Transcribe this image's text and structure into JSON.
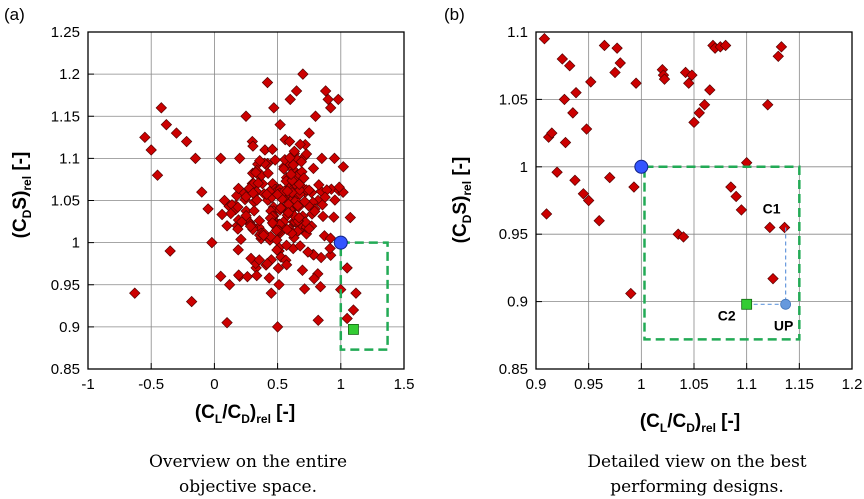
{
  "colors": {
    "marker": "#cc0000",
    "marker_edge": "#550000",
    "reference": "#3355ff",
    "c2": "#33cc33",
    "up": "#6699dd",
    "box": "#22aa55",
    "grid": "#888888"
  },
  "chart_data": [
    {
      "type": "scatter",
      "panel_label": "(a)",
      "caption": [
        "Overview on the entire",
        "objective space."
      ],
      "xlabel": {
        "main": "(C",
        "s1": "L",
        "mid": "/C",
        "s2": "D",
        "close": ")",
        "s3": "rel",
        "unit": " [-]"
      },
      "ylabel": {
        "main": "(C",
        "s1": "D",
        "mid": "S)",
        "s2": "rel",
        "unit": " [-]"
      },
      "xlim": [
        -1,
        1.5
      ],
      "ylim": [
        0.85,
        1.25
      ],
      "xticks": [
        "-1",
        "-0.5",
        "0",
        "0.5",
        "1",
        "1.5"
      ],
      "xtick_values": [
        -1,
        -0.5,
        0,
        0.5,
        1,
        1.5
      ],
      "yticks": [
        "0.85",
        "0.9",
        "0.95",
        "1",
        "1.05",
        "1.1",
        "1.15",
        "1.2",
        "1.25"
      ],
      "ytick_values": [
        0.85,
        0.9,
        0.95,
        1,
        1.05,
        1.1,
        1.15,
        1.2,
        1.25
      ],
      "grid": true,
      "reference_point": [
        1.0,
        1.0
      ],
      "c2_point": [
        1.1,
        0.897
      ],
      "box": {
        "x": [
          1.0,
          1.37
        ],
        "y": [
          0.873,
          1.0
        ]
      },
      "seed": 7,
      "series": [
        {
          "name": "designs",
          "x": [
            -0.63,
            -0.55,
            -0.5,
            -0.45,
            -0.42,
            -0.38,
            -0.35,
            -0.3,
            -0.22,
            -0.18,
            -0.15,
            -0.1,
            -0.05,
            -0.02,
            0.05,
            0.08,
            0.1,
            0.12,
            0.15,
            0.18,
            0.2,
            0.25,
            0.3,
            0.33,
            0.38,
            0.42,
            0.45,
            0.47,
            0.5,
            0.55,
            0.6,
            0.65,
            0.7,
            0.75,
            0.8,
            0.85,
            0.88,
            0.9,
            0.92,
            0.95,
            0.98,
            1.02,
            1.05,
            1.1,
            1.12,
            0.2,
            0.05,
            0.1,
            0.3,
            0.35,
            0.4,
            0.52,
            0.62,
            0.72,
            0.82,
            0.92,
            1.05
          ],
          "y": [
            0.94,
            1.125,
            1.11,
            1.08,
            1.16,
            1.14,
            0.99,
            1.13,
            1.12,
            0.93,
            1.1,
            1.06,
            1.04,
            1.0,
            0.96,
            1.05,
            0.905,
            0.95,
            1.04,
            1.02,
            0.96,
            1.15,
            1.07,
            0.97,
            1.07,
            1.19,
            0.94,
            1.16,
            0.9,
            1.09,
            1.17,
            1.18,
            1.2,
            1.13,
            1.15,
            1.1,
            1.18,
            1.17,
            1.16,
            1.1,
            1.17,
            1.09,
            0.91,
            0.92,
            0.94,
            1.1,
            1.1,
            1.02,
            1.12,
            1.08,
            1.11,
            1.14,
            1.04,
            1.06,
            1.05,
            0.985,
            0.97
          ]
        }
      ]
    },
    {
      "type": "scatter",
      "panel_label": "(b)",
      "caption": [
        "Detailed view on the best",
        "performing designs."
      ],
      "xlabel": {
        "main": "(C",
        "s1": "L",
        "mid": "/C",
        "s2": "D",
        "close": ")",
        "s3": "rel",
        "unit": " [-]"
      },
      "ylabel": {
        "main": "(C",
        "s1": "D",
        "mid": "S)",
        "s2": "rel",
        "unit": " [-]"
      },
      "xlim": [
        0.9,
        1.2
      ],
      "ylim": [
        0.85,
        1.1
      ],
      "xticks": [
        "0.9",
        "0.95",
        "1",
        "1.05",
        "1.1",
        "1.15",
        "1.2"
      ],
      "xtick_values": [
        0.9,
        0.95,
        1,
        1.05,
        1.1,
        1.15,
        1.2
      ],
      "yticks": [
        "0.85",
        "0.9",
        "0.95",
        "1",
        "1.05",
        "1.1"
      ],
      "ytick_values": [
        0.85,
        0.9,
        0.95,
        1,
        1.05,
        1.1
      ],
      "grid": true,
      "reference_point": [
        1.0,
        1.0
      ],
      "c2_point": [
        1.1,
        0.898
      ],
      "up_point": [
        1.137,
        0.898
      ],
      "c1_point": [
        1.137,
        0.955
      ],
      "box": {
        "x": [
          1.003,
          1.15
        ],
        "y": [
          0.872,
          1.0
        ]
      },
      "annotations": {
        "c1": "C1",
        "c2": "C2",
        "up": "UP"
      },
      "series": [
        {
          "name": "designs",
          "x": [
            0.908,
            0.91,
            0.912,
            0.915,
            0.92,
            0.925,
            0.927,
            0.928,
            0.932,
            0.935,
            0.937,
            0.938,
            0.945,
            0.948,
            0.95,
            0.952,
            0.96,
            0.965,
            0.97,
            0.975,
            0.977,
            0.98,
            0.99,
            0.993,
            0.995,
            1.02,
            1.021,
            1.022,
            1.035,
            1.04,
            1.042,
            1.045,
            1.048,
            1.05,
            1.055,
            1.06,
            1.065,
            1.068,
            1.07,
            1.075,
            1.08,
            1.085,
            1.09,
            1.095,
            1.1,
            1.12,
            1.122,
            1.125,
            1.13,
            1.133,
            1.136
          ],
          "y": [
            1.095,
            0.965,
            1.022,
            1.025,
            0.996,
            1.08,
            1.05,
            1.018,
            1.075,
            1.04,
            0.99,
            1.055,
            0.98,
            1.028,
            0.975,
            1.063,
            0.96,
            1.09,
            0.992,
            1.07,
            1.088,
            1.077,
            0.906,
            0.985,
            1.062,
            1.072,
            1.068,
            1.065,
            0.95,
            0.948,
            1.07,
            1.062,
            1.068,
            1.033,
            1.04,
            1.046,
            1.057,
            1.09,
            1.088,
            1.089,
            1.09,
            0.985,
            0.978,
            0.968,
            1.003,
            1.046,
            0.955,
            0.917,
            1.082,
            1.089,
            0.955
          ]
        }
      ]
    }
  ]
}
